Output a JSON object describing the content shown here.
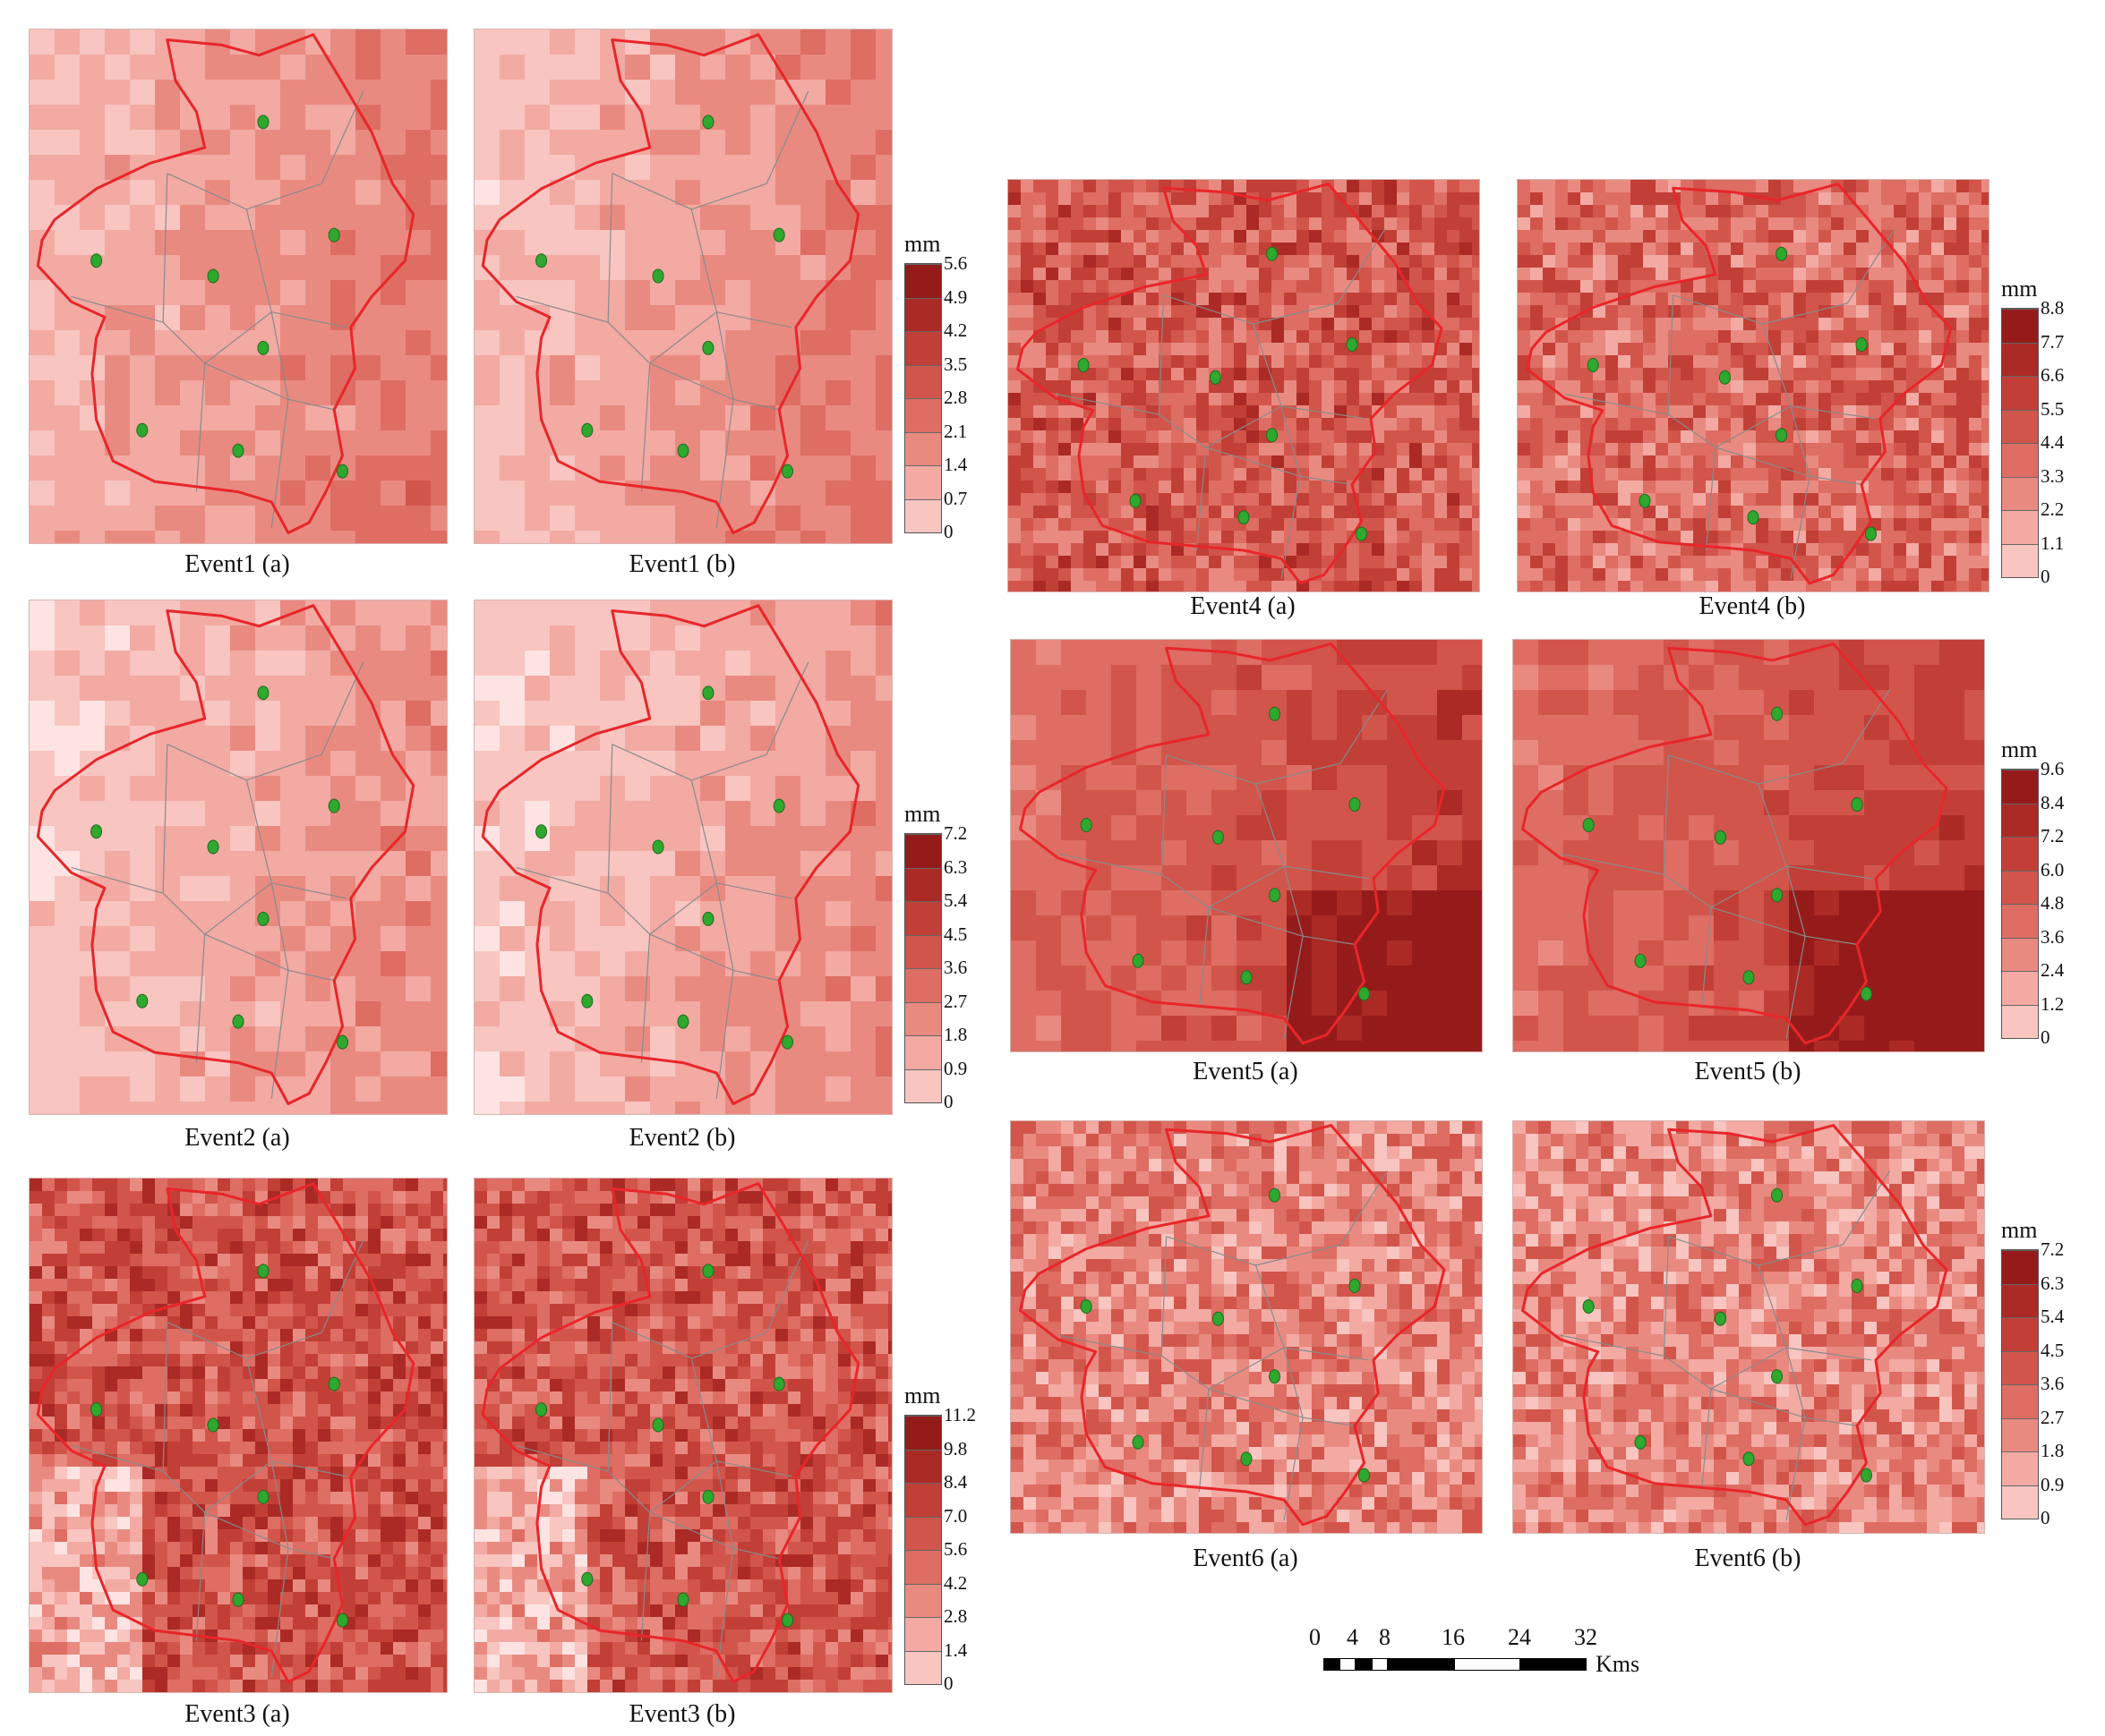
{
  "colors": {
    "boundary": "#e8262a",
    "thiessen": "#8a8a8a",
    "gauge": "#2ea82e",
    "ramp": [
      "#fde4e2",
      "#f8c5c0",
      "#f2aaa3",
      "#e98a81",
      "#de6d63",
      "#d2554b",
      "#c13f37",
      "#ab2a25",
      "#951b1b"
    ]
  },
  "panels": [
    {
      "id": "e1a",
      "caption": "Event1 (a)",
      "level": 0.35
    },
    {
      "id": "e1b",
      "caption": "Event1 (b)",
      "level": 0.33
    },
    {
      "id": "e2a",
      "caption": "Event2 (a)",
      "level": 0.28
    },
    {
      "id": "e2b",
      "caption": "Event2 (b)",
      "level": 0.28
    },
    {
      "id": "e3a",
      "caption": "Event3 (a)",
      "level": 0.62
    },
    {
      "id": "e3b",
      "caption": "Event3 (b)",
      "level": 0.6
    },
    {
      "id": "e4a",
      "caption": "Event4 (a)",
      "level": 0.58
    },
    {
      "id": "e4b",
      "caption": "Event4 (b)",
      "level": 0.52
    },
    {
      "id": "e5a",
      "caption": "Event5 (a)",
      "level": 0.62
    },
    {
      "id": "e5b",
      "caption": "Event5 (b)",
      "level": 0.62
    },
    {
      "id": "e6a",
      "caption": "Event6 (a)",
      "level": 0.42
    },
    {
      "id": "e6b",
      "caption": "Event6 (b)",
      "level": 0.4
    }
  ],
  "legends": [
    {
      "id": "leg1",
      "unit": "mm",
      "labels": [
        "5.6",
        "4.9",
        "4.2",
        "3.5",
        "2.8",
        "2.1",
        "1.4",
        "0.7",
        "0"
      ]
    },
    {
      "id": "leg2",
      "unit": "mm",
      "labels": [
        "7.2",
        "6.3",
        "5.4",
        "4.5",
        "3.6",
        "2.7",
        "1.8",
        "0.9",
        "0"
      ]
    },
    {
      "id": "leg3",
      "unit": "mm",
      "labels": [
        "11.2",
        "9.8",
        "8.4",
        "7.0",
        "5.6",
        "4.2",
        "2.8",
        "1.4",
        "0"
      ]
    },
    {
      "id": "leg4",
      "unit": "mm",
      "labels": [
        "8.8",
        "7.7",
        "6.6",
        "5.5",
        "4.4",
        "3.3",
        "2.2",
        "1.1",
        "0"
      ]
    },
    {
      "id": "leg5",
      "unit": "mm",
      "labels": [
        "9.6",
        "8.4",
        "7.2",
        "6.0",
        "4.8",
        "3.6",
        "2.4",
        "1.2",
        "0"
      ]
    },
    {
      "id": "leg6",
      "unit": "mm",
      "labels": [
        "7.2",
        "6.3",
        "5.4",
        "4.5",
        "3.6",
        "2.7",
        "1.8",
        "0.9",
        "0"
      ]
    }
  ],
  "scalebar": {
    "ticks": [
      "0",
      "4",
      "8",
      "16",
      "24",
      "32"
    ],
    "unit": "Kms"
  }
}
